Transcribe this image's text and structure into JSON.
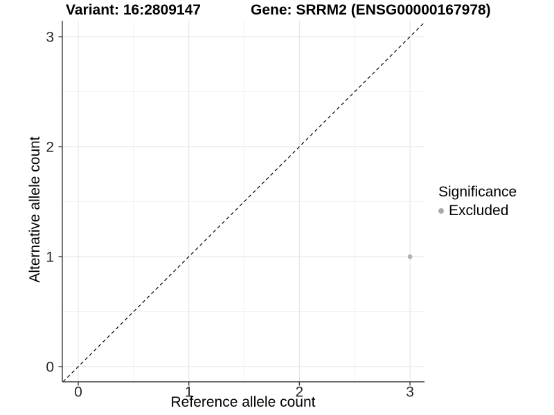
{
  "figure": {
    "title_left": "Variant: 16:2809147",
    "title_right": "Gene: SRRM2 (ENSG00000167978)"
  },
  "chart_data": {
    "type": "scatter",
    "title_left": "Variant: 16:2809147",
    "title_right": "Gene: SRRM2 (ENSG00000167978)",
    "xlabel": "Reference allele count",
    "ylabel": "Alternative allele count",
    "xlim": [
      -0.144,
      3.131
    ],
    "ylim": [
      -0.138,
      3.145
    ],
    "xticks": [
      0,
      1,
      2,
      3
    ],
    "yticks": [
      0,
      1,
      2,
      3
    ],
    "minor_xticks": [
      0.5,
      1.5,
      2.5
    ],
    "minor_yticks": [
      0.5,
      1.5,
      2.5
    ],
    "grid": "major-and-minor",
    "identity_line": {
      "slope": 1,
      "intercept": 0,
      "style": "dashed",
      "color": "#000000"
    },
    "series": [
      {
        "name": "Excluded",
        "color": "#b2b2b2",
        "point_radius": 3.4,
        "points": [
          {
            "x": 3,
            "y": 1
          }
        ]
      }
    ]
  },
  "legend": {
    "title": "Significance",
    "position": "right",
    "items": [
      {
        "label": "Excluded",
        "color": "#aaaaaa"
      }
    ]
  },
  "colors": {
    "background": "#ffffff",
    "axis_line": "#3a3a3a",
    "tick_text": "#262626",
    "grid_major": "#e5e5e5",
    "grid_minor": "#f0f0f0"
  }
}
